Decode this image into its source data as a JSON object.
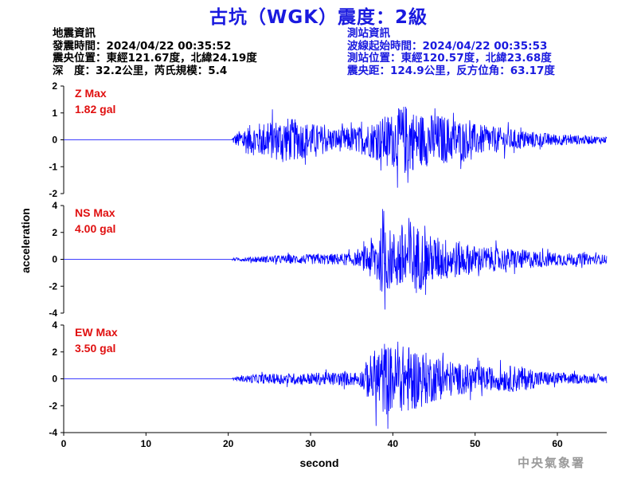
{
  "title": "古坑（WGK）震度：2級",
  "earthquake_info": {
    "heading": "地震資訊",
    "origin_time": "發震時間：2024/04/22 00:35:52",
    "epicenter": "震央位置：東經121.67度，北緯24.19度",
    "depth_magnitude": "深　度：32.2公里，芮氏規模：5.4"
  },
  "station_info": {
    "heading": "測站資訊",
    "wave_start": "波線起始時間：2024/04/22 00:35:53",
    "location": "測站位置：東經120.57度，北緯23.68度",
    "distance_azimuth": "震央距：124.9公里，反方位角：63.17度"
  },
  "agency": "中央氣象署",
  "colors": {
    "trace": "#0000ff",
    "max_text": "#e01010",
    "title": "#1a1adf"
  },
  "chart_data": {
    "type": "line",
    "xlabel": "second",
    "ylabel": "acceleration",
    "xlim": [
      0,
      66
    ],
    "xticks": [
      "0",
      "10",
      "20",
      "30",
      "40",
      "50",
      "60"
    ],
    "xtick_values": [
      0,
      10,
      20,
      30,
      40,
      50,
      60
    ],
    "signal_start": 20.5,
    "panels": [
      {
        "component": "Z",
        "max_label": "Z Max",
        "max_value": "1.82 gal",
        "ylim": [
          -2,
          2
        ],
        "yticks": [
          "2",
          "1",
          "0",
          "-1",
          "-2"
        ],
        "ytick_values": [
          2,
          1,
          0,
          -1,
          -2
        ],
        "envelope": [
          [
            20.5,
            0.15
          ],
          [
            22,
            0.6
          ],
          [
            25,
            0.85
          ],
          [
            27,
            1.0
          ],
          [
            30,
            0.75
          ],
          [
            33,
            0.5
          ],
          [
            36,
            0.6
          ],
          [
            38,
            0.9
          ],
          [
            40,
            1.2
          ],
          [
            41.5,
            1.6
          ],
          [
            43,
            1.2
          ],
          [
            46,
            1.1
          ],
          [
            50,
            0.7
          ],
          [
            55,
            0.45
          ],
          [
            60,
            0.25
          ],
          [
            66,
            0.15
          ]
        ]
      },
      {
        "component": "NS",
        "max_label": "NS Max",
        "max_value": "4.00 gal",
        "ylim": [
          -4,
          4
        ],
        "yticks": [
          "4",
          "2",
          "0",
          "-2",
          "-4"
        ],
        "ytick_values": [
          4,
          2,
          0,
          -2,
          -4
        ],
        "envelope": [
          [
            20.5,
            0.1
          ],
          [
            23,
            0.25
          ],
          [
            28,
            0.4
          ],
          [
            33,
            0.5
          ],
          [
            36,
            0.6
          ],
          [
            37.5,
            2.0
          ],
          [
            39,
            3.2
          ],
          [
            40,
            2.4
          ],
          [
            42,
            3.8
          ],
          [
            44,
            2.2
          ],
          [
            47,
            1.8
          ],
          [
            50,
            1.2
          ],
          [
            55,
            0.9
          ],
          [
            60,
            0.6
          ],
          [
            66,
            0.4
          ]
        ]
      },
      {
        "component": "EW",
        "max_label": "EW Max",
        "max_value": "3.50 gal",
        "ylim": [
          -4,
          4
        ],
        "yticks": [
          "4",
          "2",
          "0",
          "-2",
          "-4"
        ],
        "ytick_values": [
          4,
          2,
          0,
          -2,
          -4
        ],
        "envelope": [
          [
            20.5,
            0.1
          ],
          [
            23,
            0.4
          ],
          [
            28,
            0.5
          ],
          [
            33,
            0.6
          ],
          [
            36,
            0.6
          ],
          [
            37.5,
            2.4
          ],
          [
            39,
            3.3
          ],
          [
            40,
            2.8
          ],
          [
            42,
            3.0
          ],
          [
            45,
            2.0
          ],
          [
            48,
            1.4
          ],
          [
            52,
            1.0
          ],
          [
            55,
            1.2
          ],
          [
            58,
            0.7
          ],
          [
            62,
            0.45
          ],
          [
            66,
            0.3
          ]
        ]
      }
    ]
  }
}
